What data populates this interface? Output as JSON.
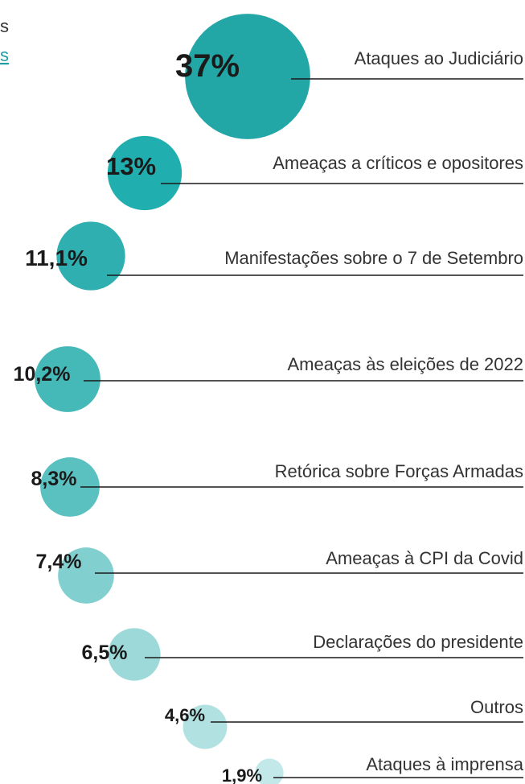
{
  "header_fragments": [
    "s",
    "s"
  ],
  "chart_data": {
    "type": "bubble",
    "categories": [
      "Ataques ao Judiciário",
      "Ameaças a críticos e opositores",
      "Manifestações sobre o 7 de Setembro",
      "Ameaças às eleições de 2022",
      "Retórica sobre Forças Armadas",
      "Ameaças à CPI da Covid",
      "Declarações do presidente",
      "Outros",
      "Ataques à imprensa"
    ],
    "values": [
      37,
      13,
      11.1,
      10.2,
      8.3,
      7.4,
      6.5,
      4.6,
      1.9
    ],
    "value_labels": [
      "37%",
      "13%",
      "11,1%",
      "10,2%",
      "8,3%",
      "7,4%",
      "6,5%",
      "4,6%",
      "1,9%"
    ],
    "colors": [
      "#22a6a6",
      "#21aeae",
      "#2fafb0",
      "#45b8b8",
      "#5bc0c0",
      "#82cfd0",
      "#9ed9d9",
      "#b2e1e2",
      "#c3e8e9"
    ]
  }
}
